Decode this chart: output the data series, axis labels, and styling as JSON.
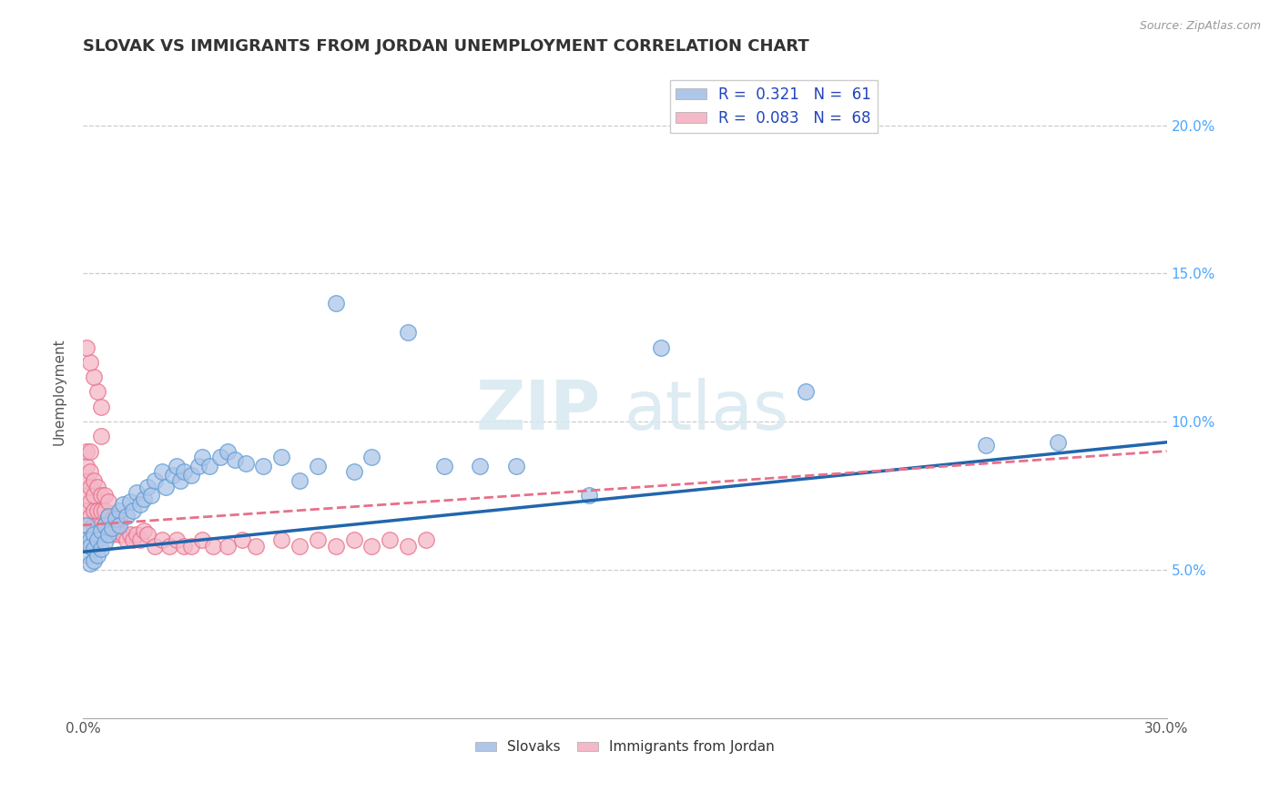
{
  "title": "SLOVAK VS IMMIGRANTS FROM JORDAN UNEMPLOYMENT CORRELATION CHART",
  "source": "Source: ZipAtlas.com",
  "ylabel": "Unemployment",
  "xlim": [
    0.0,
    0.3
  ],
  "ylim": [
    0.0,
    0.22
  ],
  "xticks": [
    0.0,
    0.3
  ],
  "xtick_labels": [
    "0.0%",
    "30.0%"
  ],
  "yticks": [
    0.05,
    0.1,
    0.15,
    0.2
  ],
  "ytick_labels": [
    "5.0%",
    "10.0%",
    "15.0%",
    "20.0%"
  ],
  "series_slovak": {
    "color": "#aec6e8",
    "edgecolor": "#5b9bd5",
    "x": [
      0.001,
      0.001,
      0.001,
      0.002,
      0.002,
      0.002,
      0.003,
      0.003,
      0.003,
      0.004,
      0.004,
      0.005,
      0.005,
      0.006,
      0.006,
      0.007,
      0.007,
      0.008,
      0.009,
      0.01,
      0.01,
      0.011,
      0.012,
      0.013,
      0.014,
      0.015,
      0.016,
      0.017,
      0.018,
      0.019,
      0.02,
      0.022,
      0.023,
      0.025,
      0.026,
      0.027,
      0.028,
      0.03,
      0.032,
      0.033,
      0.035,
      0.038,
      0.04,
      0.042,
      0.045,
      0.05,
      0.055,
      0.06,
      0.065,
      0.07,
      0.075,
      0.08,
      0.09,
      0.1,
      0.11,
      0.12,
      0.14,
      0.16,
      0.2,
      0.25,
      0.27
    ],
    "y": [
      0.065,
      0.06,
      0.055,
      0.06,
      0.058,
      0.052,
      0.062,
      0.057,
      0.053,
      0.06,
      0.055,
      0.063,
      0.057,
      0.065,
      0.059,
      0.068,
      0.062,
      0.064,
      0.067,
      0.07,
      0.065,
      0.072,
      0.068,
      0.073,
      0.07,
      0.076,
      0.072,
      0.074,
      0.078,
      0.075,
      0.08,
      0.083,
      0.078,
      0.082,
      0.085,
      0.08,
      0.083,
      0.082,
      0.085,
      0.088,
      0.085,
      0.088,
      0.09,
      0.087,
      0.086,
      0.085,
      0.088,
      0.08,
      0.085,
      0.14,
      0.083,
      0.088,
      0.13,
      0.085,
      0.085,
      0.085,
      0.075,
      0.125,
      0.11,
      0.092,
      0.093
    ]
  },
  "series_jordan": {
    "color": "#f4b8c8",
    "edgecolor": "#e8708a",
    "x": [
      0.001,
      0.001,
      0.001,
      0.001,
      0.001,
      0.001,
      0.002,
      0.002,
      0.002,
      0.002,
      0.002,
      0.003,
      0.003,
      0.003,
      0.003,
      0.004,
      0.004,
      0.004,
      0.005,
      0.005,
      0.005,
      0.006,
      0.006,
      0.006,
      0.007,
      0.007,
      0.007,
      0.008,
      0.008,
      0.009,
      0.009,
      0.01,
      0.01,
      0.011,
      0.012,
      0.013,
      0.014,
      0.015,
      0.016,
      0.017,
      0.018,
      0.02,
      0.022,
      0.024,
      0.026,
      0.028,
      0.03,
      0.033,
      0.036,
      0.04,
      0.044,
      0.048,
      0.055,
      0.06,
      0.065,
      0.07,
      0.075,
      0.08,
      0.085,
      0.09,
      0.095,
      0.005,
      0.005,
      0.004,
      0.003,
      0.002,
      0.001
    ],
    "y": [
      0.065,
      0.07,
      0.075,
      0.08,
      0.085,
      0.09,
      0.068,
      0.073,
      0.078,
      0.083,
      0.09,
      0.065,
      0.07,
      0.075,
      0.08,
      0.065,
      0.07,
      0.078,
      0.065,
      0.07,
      0.075,
      0.065,
      0.07,
      0.075,
      0.063,
      0.068,
      0.073,
      0.062,
      0.067,
      0.063,
      0.068,
      0.062,
      0.067,
      0.062,
      0.06,
      0.062,
      0.06,
      0.062,
      0.06,
      0.063,
      0.062,
      0.058,
      0.06,
      0.058,
      0.06,
      0.058,
      0.058,
      0.06,
      0.058,
      0.058,
      0.06,
      0.058,
      0.06,
      0.058,
      0.06,
      0.058,
      0.06,
      0.058,
      0.06,
      0.058,
      0.06,
      0.105,
      0.095,
      0.11,
      0.115,
      0.12,
      0.125
    ]
  },
  "trendline_slovak": {
    "color": "#2166ac",
    "x_start": 0.0,
    "x_end": 0.3,
    "y_start": 0.056,
    "y_end": 0.093
  },
  "trendline_jordan": {
    "color": "#e8708a",
    "x_start": 0.0,
    "x_end": 0.3,
    "y_start": 0.065,
    "y_end": 0.09
  },
  "background_color": "#ffffff",
  "grid_color": "#cccccc",
  "watermark_zip": "ZIP",
  "watermark_atlas": "atlas",
  "title_fontsize": 13,
  "label_fontsize": 11
}
